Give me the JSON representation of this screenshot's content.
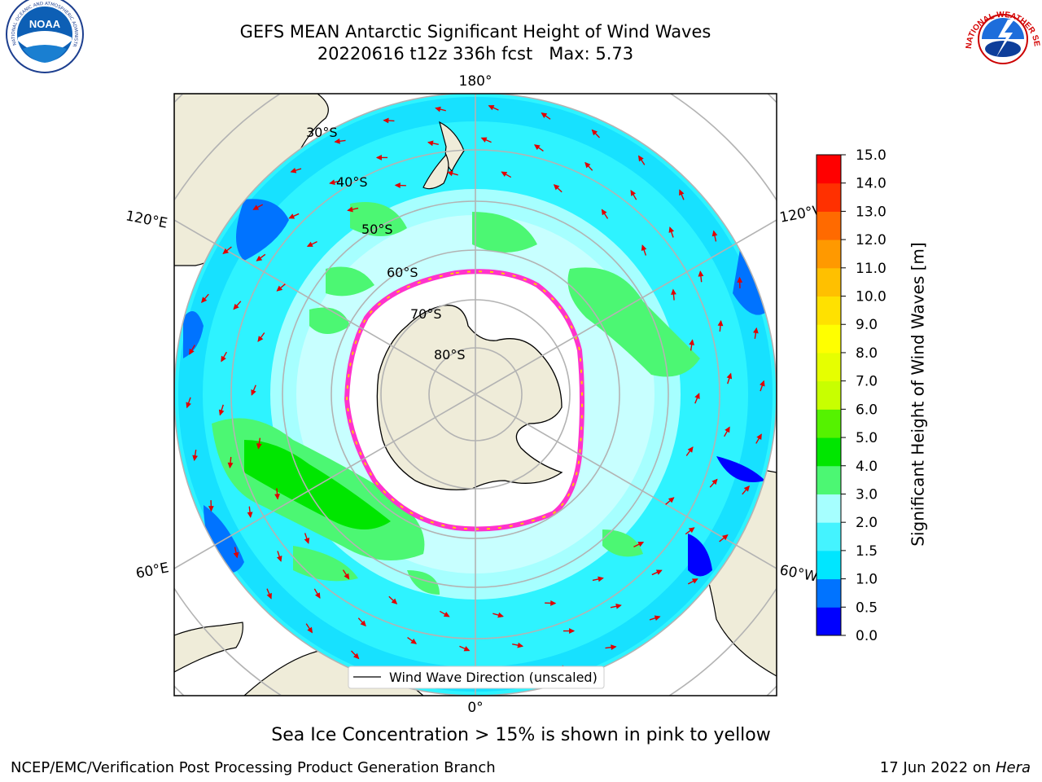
{
  "header": {
    "title_line1": "GEFS MEAN Antarctic Significant Height of Wind Waves",
    "title_line2": "20220616 t12z 336h fcst   Max: 5.73"
  },
  "logos": {
    "left": "NOAA",
    "left_ring": "NATIONAL OCEANIC AND ATMOSPHERIC ADMINISTRATION · U.S. DEPARTMENT OF COMMERCE",
    "right": "NATIONAL WEATHER SERVICE"
  },
  "map": {
    "projection": "south-polar-stereographic",
    "longitude_labels": {
      "top": "180°",
      "bottom": "0°",
      "left_upper": "120°E",
      "left_lower": "60°E",
      "right_upper": "120°W",
      "right_lower": "60°W"
    },
    "latitude_labels": [
      "30°S",
      "40°S",
      "50°S",
      "60°S",
      "70°S",
      "80°S"
    ],
    "legend_label": "Wind Wave Direction (unscaled)",
    "colors": {
      "land": "#efecd9",
      "ice": "#ffffff",
      "coastline": "#000000",
      "grid": "#b8b8b8",
      "arrows": "#ff0000"
    }
  },
  "colorbar": {
    "label": "Significant Height of Wind Waves [m]",
    "ticks": [
      "0.0",
      "0.5",
      "1.0",
      "1.5",
      "2.0",
      "3.0",
      "4.0",
      "5.0",
      "6.0",
      "7.0",
      "8.0",
      "9.0",
      "10.0",
      "11.0",
      "12.0",
      "13.0",
      "14.0",
      "15.0"
    ],
    "colors": [
      "#0000ff",
      "#0073ff",
      "#00e6ff",
      "#44f3ff",
      "#a6ffff",
      "#4cf773",
      "#00e600",
      "#55f200",
      "#c8ff00",
      "#e6ff00",
      "#ffff00",
      "#ffe100",
      "#ffc000",
      "#ff9900",
      "#ff6a00",
      "#ff3000",
      "#ff0000"
    ]
  },
  "caption": "Sea Ice Concentration > 15% is shown in pink to yellow",
  "footer": {
    "left": "NCEP/EMC/Verification Post Processing Product Generation Branch",
    "right_date": "17 Jun 2022 on ",
    "right_host": "Hera"
  }
}
